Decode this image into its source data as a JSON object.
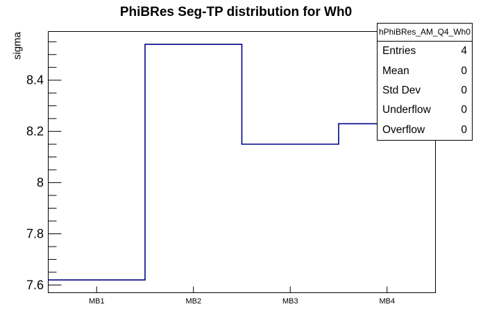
{
  "title": "PhiBRes Seg-TP distribution for Wh0",
  "y_axis_title": "sigma",
  "stats": {
    "header": "hPhiBRes_AM_Q4_Wh0",
    "rows": [
      {
        "label": "Entries",
        "value": "4"
      },
      {
        "label": "Mean",
        "value": "0"
      },
      {
        "label": "Std Dev",
        "value": "0"
      },
      {
        "label": "Underflow",
        "value": "0"
      },
      {
        "label": "Overflow",
        "value": "0"
      }
    ]
  },
  "chart_data": {
    "type": "bar",
    "subtype": "step-histogram-outline",
    "title": "PhiBRes Seg-TP distribution for Wh0",
    "xlabel": "",
    "ylabel": "sigma",
    "categories": [
      "MB1",
      "MB2",
      "MB3",
      "MB4"
    ],
    "values": [
      7.62,
      8.54,
      8.15,
      8.23
    ],
    "ylim": [
      7.57,
      8.59
    ],
    "y_major_ticks": [
      7.6,
      7.8,
      8,
      8.2,
      8.4
    ],
    "y_minor_step": 0.05,
    "grid": false,
    "legend": "none",
    "line_color": "#00008b",
    "axis_color": "#000000",
    "background_color": "#ffffff"
  }
}
